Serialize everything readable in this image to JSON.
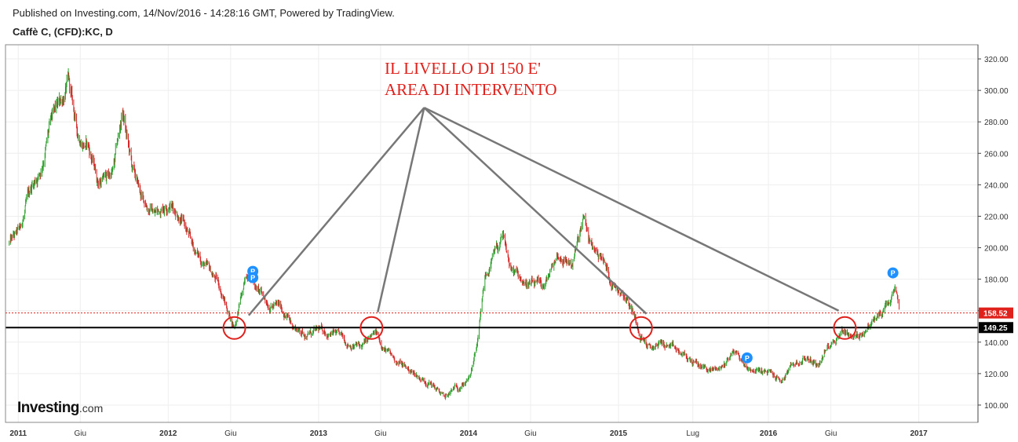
{
  "header": {
    "published": "Published on Investing.com, 14/Nov/2016 - 14:28:16 GMT, Powered by TradingView.",
    "symbol": "Caffè C, (CFD):KC, D"
  },
  "logo": {
    "main": "Investing",
    "suffix": ".com"
  },
  "annotation": {
    "line1": "IL LIVELLO DI 150 E'",
    "line2": "AREA DI INTERVENTO"
  },
  "colors": {
    "up": "#2ca02c",
    "down": "#d62728",
    "annotation": "#e0201b",
    "support_line": "#000000",
    "price_line": "#e0201b",
    "arrow": "#777777",
    "event_marker": "#1e90ff"
  },
  "chart_data": {
    "type": "candlestick",
    "y_axis": {
      "min": 89,
      "max": 329,
      "ticks": [
        "100.00",
        "120.00",
        "140.00",
        "160.00",
        "180.00",
        "200.00",
        "220.00",
        "240.00",
        "260.00",
        "280.00",
        "300.00",
        "320.00"
      ],
      "side": "right"
    },
    "x_axis": {
      "start": "2010-12-01",
      "end": "2017-05-25",
      "ticks": [
        {
          "date": "2011-01-01",
          "label": "2011",
          "bold": true
        },
        {
          "date": "2011-06-01",
          "label": "Giu",
          "bold": false
        },
        {
          "date": "2012-01-01",
          "label": "2012",
          "bold": true
        },
        {
          "date": "2012-06-01",
          "label": "Giu",
          "bold": false
        },
        {
          "date": "2013-01-01",
          "label": "2013",
          "bold": true
        },
        {
          "date": "2013-06-01",
          "label": "Giu",
          "bold": false
        },
        {
          "date": "2014-01-01",
          "label": "2014",
          "bold": true
        },
        {
          "date": "2014-06-01",
          "label": "Giu",
          "bold": false
        },
        {
          "date": "2015-01-01",
          "label": "2015",
          "bold": true
        },
        {
          "date": "2015-07-01",
          "label": "Lug",
          "bold": false
        },
        {
          "date": "2016-01-01",
          "label": "2016",
          "bold": true
        },
        {
          "date": "2016-06-01",
          "label": "Giu",
          "bold": false
        },
        {
          "date": "2017-01-01",
          "label": "2017",
          "bold": true
        }
      ]
    },
    "price_path": [
      [
        "2010-12-10",
        203
      ],
      [
        "2011-01-05",
        210
      ],
      [
        "2011-02-01",
        238
      ],
      [
        "2011-02-25",
        250
      ],
      [
        "2011-03-20",
        278
      ],
      [
        "2011-04-15",
        292
      ],
      [
        "2011-05-03",
        305
      ],
      [
        "2011-05-25",
        272
      ],
      [
        "2011-06-20",
        265
      ],
      [
        "2011-07-15",
        242
      ],
      [
        "2011-08-20",
        248
      ],
      [
        "2011-09-12",
        286
      ],
      [
        "2011-10-05",
        250
      ],
      [
        "2011-10-30",
        230
      ],
      [
        "2011-12-01",
        222
      ],
      [
        "2012-01-02",
        230
      ],
      [
        "2012-02-01",
        220
      ],
      [
        "2012-03-01",
        200
      ],
      [
        "2012-04-01",
        188
      ],
      [
        "2012-05-01",
        178
      ],
      [
        "2012-05-28",
        158
      ],
      [
        "2012-06-10",
        150
      ],
      [
        "2012-06-25",
        167
      ],
      [
        "2012-07-15",
        185
      ],
      [
        "2012-08-10",
        172
      ],
      [
        "2012-09-01",
        165
      ],
      [
        "2012-10-01",
        162
      ],
      [
        "2012-11-01",
        150
      ],
      [
        "2012-12-01",
        145
      ],
      [
        "2013-01-10",
        147
      ],
      [
        "2013-02-10",
        145
      ],
      [
        "2013-03-10",
        140
      ],
      [
        "2013-04-15",
        137
      ],
      [
        "2013-05-20",
        145
      ],
      [
        "2013-06-25",
        131
      ],
      [
        "2013-08-01",
        124
      ],
      [
        "2013-09-01",
        118
      ],
      [
        "2013-10-01",
        114
      ],
      [
        "2013-11-05",
        104
      ],
      [
        "2013-12-01",
        111
      ],
      [
        "2014-01-05",
        117
      ],
      [
        "2014-01-25",
        142
      ],
      [
        "2014-02-10",
        180
      ],
      [
        "2014-03-05",
        195
      ],
      [
        "2014-03-25",
        205
      ],
      [
        "2014-04-15",
        185
      ],
      [
        "2014-05-20",
        178
      ],
      [
        "2014-06-15",
        175
      ],
      [
        "2014-07-05",
        175
      ],
      [
        "2014-08-05",
        195
      ],
      [
        "2014-09-10",
        190
      ],
      [
        "2014-10-10",
        218
      ],
      [
        "2014-10-25",
        200
      ],
      [
        "2014-11-20",
        195
      ],
      [
        "2014-12-15",
        178
      ],
      [
        "2015-01-15",
        172
      ],
      [
        "2015-02-05",
        160
      ],
      [
        "2015-02-25",
        145
      ],
      [
        "2015-03-20",
        135
      ],
      [
        "2015-04-15",
        140
      ],
      [
        "2015-05-15",
        135
      ],
      [
        "2015-06-15",
        130
      ],
      [
        "2015-07-15",
        125
      ],
      [
        "2015-08-15",
        122
      ],
      [
        "2015-09-10",
        124
      ],
      [
        "2015-10-10",
        135
      ],
      [
        "2015-11-05",
        125
      ],
      [
        "2015-12-05",
        122
      ],
      [
        "2016-01-05",
        120
      ],
      [
        "2016-02-01",
        115
      ],
      [
        "2016-03-01",
        125
      ],
      [
        "2016-04-01",
        130
      ],
      [
        "2016-05-01",
        126
      ],
      [
        "2016-06-01",
        140
      ],
      [
        "2016-07-01",
        148
      ],
      [
        "2016-08-01",
        143
      ],
      [
        "2016-09-01",
        150
      ],
      [
        "2016-10-01",
        158
      ],
      [
        "2016-10-25",
        165
      ],
      [
        "2016-11-05",
        172
      ],
      [
        "2016-11-14",
        158.52
      ]
    ],
    "current_price": {
      "value": 158.52,
      "label": "158.52"
    },
    "support_level": {
      "value": 149.25,
      "label": "149.25"
    },
    "circles": [
      {
        "date": "2012-06-10",
        "value": 149
      },
      {
        "date": "2013-05-10",
        "value": 149
      },
      {
        "date": "2015-02-25",
        "value": 149
      },
      {
        "date": "2016-07-05",
        "value": 149
      }
    ],
    "arrows": {
      "apex": {
        "date": "2013-09-15",
        "value": 289
      },
      "targets": [
        {
          "date": "2012-07-15",
          "value": 157
        },
        {
          "date": "2013-05-25",
          "value": 159
        },
        {
          "date": "2015-03-10",
          "value": 158
        },
        {
          "date": "2016-06-20",
          "value": 160
        }
      ]
    },
    "event_markers": [
      {
        "date": "2012-07-25",
        "value": 185,
        "label": "P"
      },
      {
        "date": "2012-07-25",
        "value": 181,
        "label": "P"
      },
      {
        "date": "2015-11-10",
        "value": 130,
        "label": "P"
      },
      {
        "date": "2016-10-30",
        "value": 184,
        "label": "P"
      }
    ]
  }
}
